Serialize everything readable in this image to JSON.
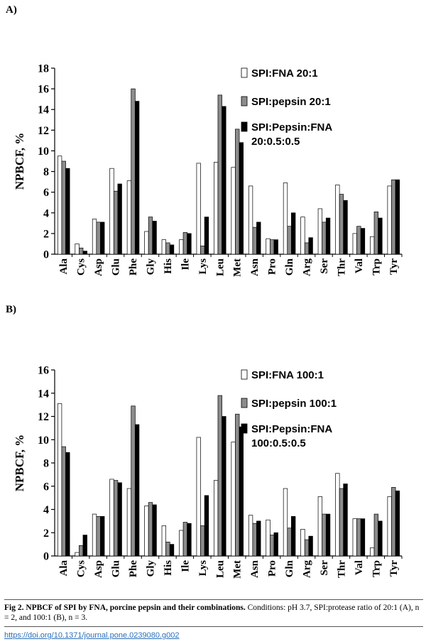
{
  "figure": {
    "caption_title": "Fig 2. NPBCF of SPI by FNA, porcine pepsin and their combinations.",
    "caption_text": "Conditions: pH 3.7, SPI:protease ratio of 20:1 (A), n = 2, and 100:1 (B), n = 3.",
    "doi": "https://doi.org/10.1371/journal.pone.0239080.g002"
  },
  "colors": {
    "series1": "#ffffff",
    "series2": "#8c8c8c",
    "series3": "#000000",
    "stroke": "#000000"
  },
  "chart_data": [
    {
      "panel": "A)",
      "type": "bar",
      "ylabel": "NPBCF, %",
      "xlabel": "",
      "ylim": [
        0,
        18
      ],
      "yticks": [
        0,
        2,
        4,
        6,
        8,
        10,
        12,
        14,
        16,
        18
      ],
      "grid": false,
      "legend_position": "top-right",
      "categories": [
        "Ala",
        "Cys",
        "Asp",
        "Glu",
        "Phe",
        "Gly",
        "His",
        "Ile",
        "Lys",
        "Leu",
        "Met",
        "Asn",
        "Pro",
        "Gln",
        "Arg",
        "Ser",
        "Thr",
        "Val",
        "Trp",
        "Tyr"
      ],
      "series": [
        {
          "name": "SPI:FNA 20:1",
          "legend_lines": [
            "SPI:FNA 20:1"
          ],
          "values": [
            9.5,
            1.0,
            3.4,
            8.3,
            7.1,
            2.2,
            1.4,
            1.4,
            8.8,
            8.9,
            8.4,
            6.6,
            1.5,
            6.9,
            3.6,
            4.4,
            6.7,
            2.0,
            1.7,
            6.6
          ]
        },
        {
          "name": "SPI:pepsin 20:1",
          "legend_lines": [
            "SPI:pepsin 20:1"
          ],
          "values": [
            9.0,
            0.6,
            3.1,
            6.1,
            16.0,
            3.6,
            1.1,
            2.1,
            0.8,
            15.4,
            12.1,
            2.6,
            1.4,
            2.7,
            1.1,
            3.1,
            5.8,
            2.7,
            4.1,
            7.2
          ]
        },
        {
          "name": "SPI:Pepsin:FNA 20:0.5:0.5",
          "legend_lines": [
            "SPI:Pepsin:FNA",
            "20:0.5:0.5"
          ],
          "values": [
            8.3,
            0.3,
            3.1,
            6.8,
            14.8,
            3.2,
            0.9,
            2.0,
            3.6,
            14.3,
            10.8,
            3.1,
            1.4,
            4.0,
            1.6,
            3.5,
            5.2,
            2.5,
            3.5,
            7.2
          ]
        }
      ]
    },
    {
      "panel": "B)",
      "type": "bar",
      "ylabel": "NPBCF, %",
      "xlabel": "",
      "ylim": [
        0,
        16
      ],
      "yticks": [
        0,
        2,
        4,
        6,
        8,
        10,
        12,
        14,
        16
      ],
      "grid": false,
      "legend_position": "top-right",
      "categories": [
        "Ala",
        "Cys",
        "Asp",
        "Glu",
        "Phe",
        "Gly",
        "His",
        "Ile",
        "Lys",
        "Leu",
        "Met",
        "Asn",
        "Pro",
        "Gln",
        "Arg",
        "Ser",
        "Thr",
        "Val",
        "Trp",
        "Tyr"
      ],
      "series": [
        {
          "name": "SPI:FNA 100:1",
          "legend_lines": [
            "SPI:FNA 100:1"
          ],
          "values": [
            13.1,
            0.3,
            3.6,
            6.6,
            5.8,
            4.3,
            2.6,
            2.2,
            10.2,
            6.5,
            9.8,
            3.5,
            3.1,
            5.8,
            2.3,
            5.1,
            7.1,
            3.2,
            0.7,
            5.1
          ]
        },
        {
          "name": "SPI:pepsin 100:1",
          "legend_lines": [
            "SPI:pepsin 100:1"
          ],
          "values": [
            9.4,
            0.9,
            3.4,
            6.5,
            12.9,
            4.6,
            1.2,
            2.9,
            2.6,
            13.8,
            12.2,
            2.8,
            1.8,
            2.4,
            1.4,
            3.6,
            5.8,
            3.2,
            3.6,
            5.9
          ]
        },
        {
          "name": "SPI:Pepsin:FNA 100:0.5:0.5",
          "legend_lines": [
            "SPI:Pepsin:FNA",
            "100:0.5:0.5"
          ],
          "values": [
            8.9,
            1.8,
            3.4,
            6.3,
            11.3,
            4.4,
            1.0,
            2.8,
            5.2,
            12.0,
            11.1,
            3.0,
            2.0,
            3.4,
            1.7,
            3.6,
            6.2,
            3.2,
            3.0,
            5.6
          ]
        }
      ]
    }
  ]
}
